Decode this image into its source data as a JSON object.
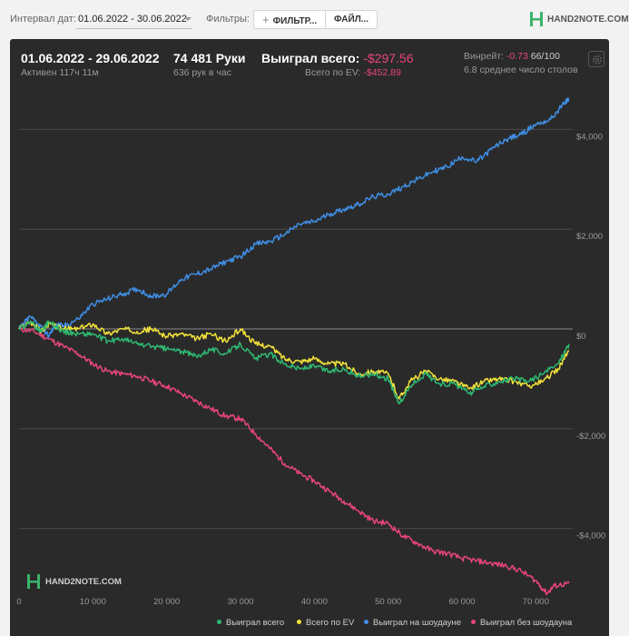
{
  "toolbar": {
    "date_interval_label": "Интервал дат:",
    "date_interval_value": "01.06.2022 - 30.06.2022",
    "filters_label": "Фильтры:",
    "filter_button": "ФИЛЬТР...",
    "file_button": "ФАЙЛ...",
    "brand": "HAND2NOTE.COM"
  },
  "summary": {
    "period": "01.06.2022 - 29.06.2022",
    "active": "Активен 117ч 11м",
    "hands": "74 481 Руки",
    "hands_per_hour": "636 рук в час",
    "won_total_label": "Выиграл всего:",
    "won_total_value": "-$297.56",
    "ev_total_label": "Всего по EV:",
    "ev_total_value": "-$452.89",
    "winrate_label": "Винрейт:",
    "winrate_value": "-0.73",
    "winrate_sample": "66/100",
    "avg_tables": "6.8 среднее число столов"
  },
  "colors": {
    "won_total": "#2eb872",
    "ev": "#f2e23a",
    "showdown": "#3f8fe6",
    "non_showdown": "#e8457a"
  },
  "chart_data": {
    "type": "line",
    "title": "",
    "xlabel": "",
    "ylabel": "",
    "xlim": [
      0,
      75000
    ],
    "ylim": [
      -5300,
      4900
    ],
    "x_ticks": [
      0,
      10000,
      20000,
      30000,
      40000,
      50000,
      60000,
      70000
    ],
    "x_tick_labels": [
      "0",
      "10 000",
      "20 000",
      "30 000",
      "40 000",
      "50 000",
      "60 000",
      "70 000"
    ],
    "y_ticks": [
      4000,
      2000,
      0,
      -2000,
      -4000
    ],
    "y_tick_labels": [
      "$4,000",
      "$2,000",
      "$0",
      "-$2,000",
      "-$4,000"
    ],
    "legend_position": "bottom-right",
    "series": [
      {
        "name": "Выиграл всего",
        "color_key": "won_total",
        "x": [
          0,
          1500,
          3000,
          4000,
          6000,
          8000,
          10000,
          12000,
          14000,
          16000,
          18000,
          20000,
          22000,
          24000,
          26000,
          28000,
          30000,
          32000,
          34000,
          36000,
          38000,
          40000,
          42000,
          44000,
          46000,
          48000,
          50000,
          51500,
          53000,
          55000,
          57000,
          59000,
          61000,
          63000,
          65000,
          67000,
          69000,
          71000,
          73000,
          74500
        ],
        "y": [
          0,
          150,
          -50,
          150,
          -50,
          -100,
          -100,
          -250,
          -200,
          -300,
          -350,
          -400,
          -450,
          -550,
          -400,
          -500,
          -300,
          -600,
          -500,
          -700,
          -800,
          -750,
          -850,
          -800,
          -950,
          -900,
          -1000,
          -1500,
          -1150,
          -900,
          -1100,
          -1100,
          -1300,
          -1150,
          -1050,
          -1000,
          -1050,
          -900,
          -700,
          -300
        ]
      },
      {
        "name": "Всего по EV",
        "color_key": "ev",
        "x": [
          0,
          1500,
          3000,
          4000,
          6000,
          8000,
          10000,
          12000,
          14000,
          16000,
          18000,
          20000,
          22000,
          24000,
          26000,
          28000,
          30000,
          32000,
          34000,
          36000,
          38000,
          40000,
          42000,
          44000,
          46000,
          48000,
          50000,
          51500,
          53000,
          55000,
          57000,
          59000,
          61000,
          63000,
          65000,
          67000,
          69000,
          71000,
          73000,
          74500
        ],
        "y": [
          0,
          150,
          -50,
          100,
          0,
          0,
          100,
          -100,
          0,
          -50,
          0,
          -150,
          -100,
          -200,
          -100,
          -250,
          0,
          -300,
          -350,
          -600,
          -650,
          -600,
          -700,
          -700,
          -900,
          -850,
          -900,
          -1400,
          -1050,
          -850,
          -1000,
          -1050,
          -1200,
          -1050,
          -1000,
          -1050,
          -1150,
          -1050,
          -800,
          -450
        ]
      },
      {
        "name": "Выиграл на шоудауне",
        "color_key": "showdown",
        "x": [
          0,
          1500,
          3000,
          4000,
          5000,
          6000,
          8000,
          10000,
          12000,
          14000,
          16000,
          18000,
          20000,
          22000,
          24000,
          26000,
          28000,
          30000,
          32000,
          34000,
          36000,
          38000,
          40000,
          42000,
          44000,
          46000,
          48000,
          50000,
          52000,
          54000,
          56000,
          58000,
          60000,
          62000,
          64000,
          66000,
          68000,
          70000,
          72000,
          74000,
          74500
        ],
        "y": [
          0,
          250,
          50,
          -150,
          100,
          50,
          200,
          500,
          600,
          700,
          800,
          650,
          700,
          1000,
          1100,
          1200,
          1350,
          1450,
          1700,
          1750,
          1900,
          2100,
          2150,
          2300,
          2400,
          2500,
          2650,
          2700,
          2850,
          3000,
          3150,
          3250,
          3450,
          3350,
          3600,
          3800,
          3900,
          4100,
          4200,
          4550,
          4600
        ]
      },
      {
        "name": "Выиграл без шоудауна",
        "color_key": "non_showdown",
        "x": [
          0,
          2000,
          4000,
          6000,
          8000,
          10000,
          12000,
          14000,
          16000,
          18000,
          20000,
          22000,
          24000,
          26000,
          28000,
          30000,
          32000,
          34000,
          36000,
          38000,
          40000,
          42000,
          44000,
          46000,
          48000,
          50000,
          52000,
          54000,
          56000,
          58000,
          60000,
          62000,
          64000,
          66000,
          68000,
          70000,
          71500,
          72500,
          74500
        ],
        "y": [
          0,
          -50,
          -200,
          -350,
          -500,
          -700,
          -850,
          -900,
          -950,
          -1050,
          -1150,
          -1300,
          -1450,
          -1600,
          -1750,
          -1800,
          -2100,
          -2400,
          -2700,
          -2900,
          -3050,
          -3250,
          -3450,
          -3650,
          -3850,
          -3900,
          -4150,
          -4300,
          -4450,
          -4500,
          -4600,
          -4650,
          -4700,
          -4750,
          -4850,
          -5050,
          -5300,
          -5150,
          -5100
        ]
      }
    ]
  }
}
